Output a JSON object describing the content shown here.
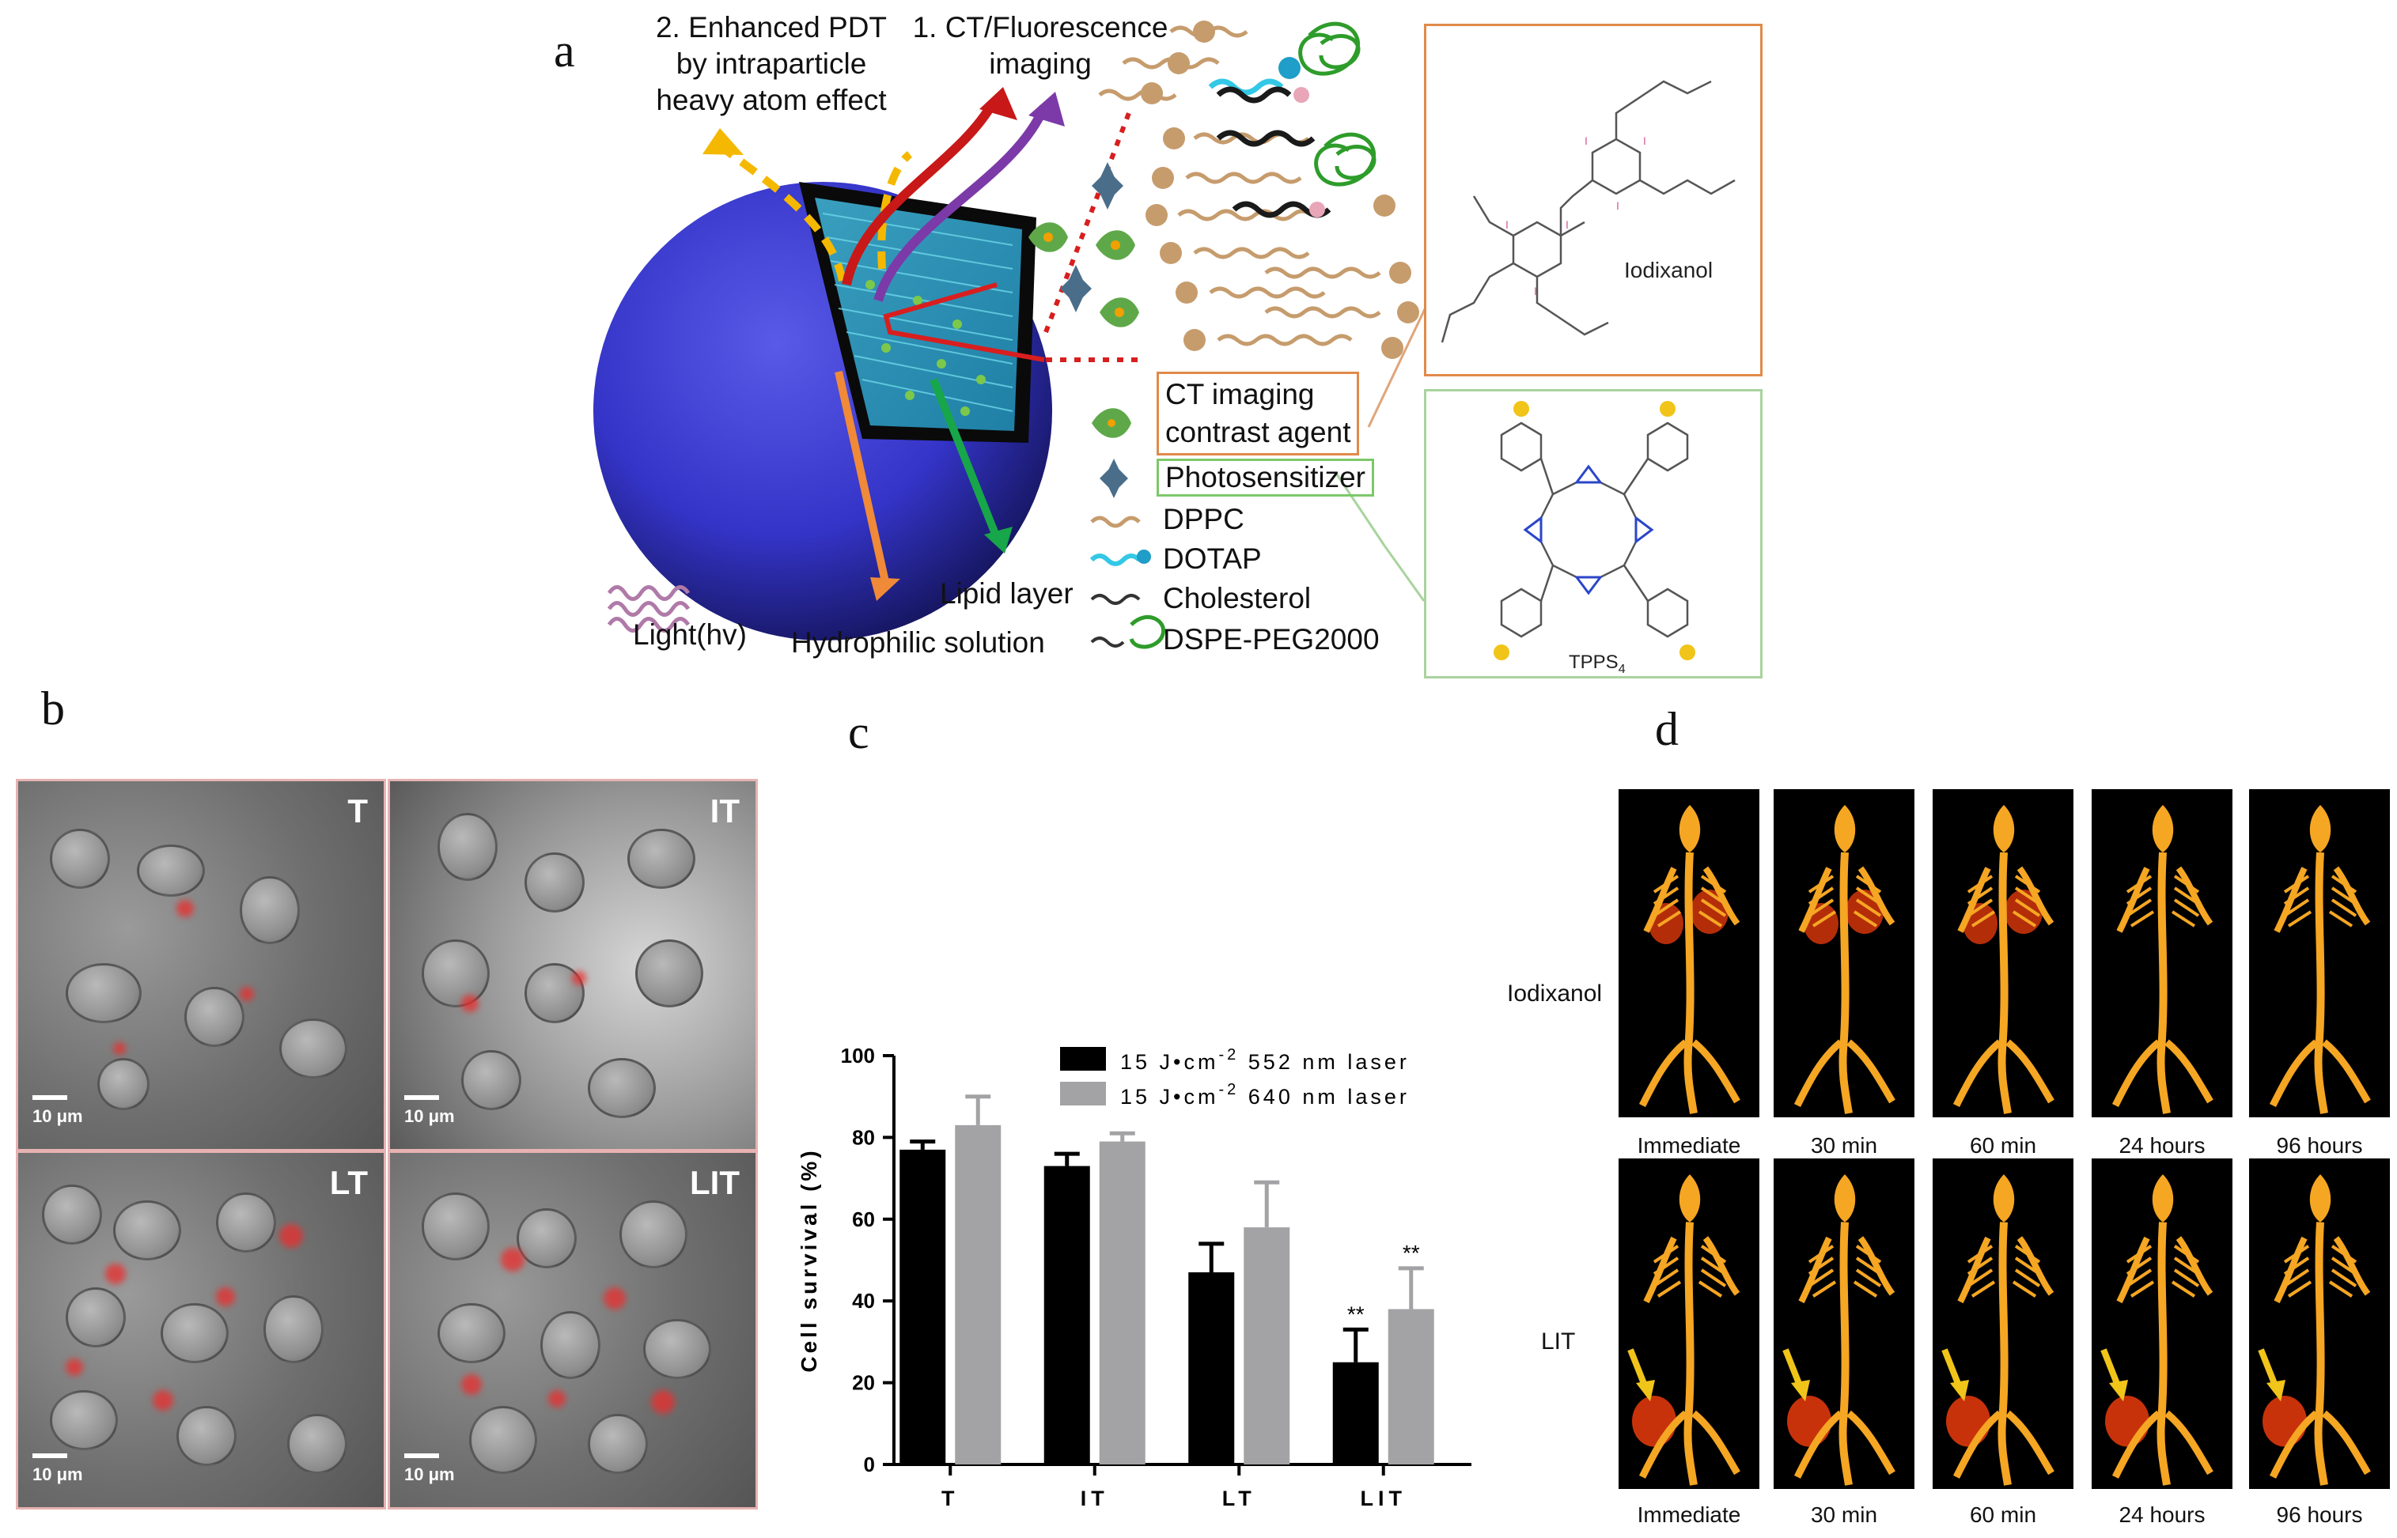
{
  "panels": {
    "a": "a",
    "b": "b",
    "c": "c",
    "d": "d"
  },
  "schematic": {
    "pdt_label": [
      "2. Enhanced PDT",
      "by intraparticle",
      "heavy atom effect"
    ],
    "imaging_label": [
      "1. CT/Fluorescence",
      "imaging"
    ],
    "light": "Light(hv)",
    "lipid_layer": "Lipid layer",
    "hydrophilic": "Hydrophilic solution",
    "legend": {
      "ct_agent": [
        "CT imaging",
        "contrast agent"
      ],
      "photosensitizer": "Photosensitizer",
      "dppc": "DPPC",
      "dotap": "DOTAP",
      "cholesterol": "Cholesterol",
      "dspe": "DSPE-PEG2000"
    },
    "iodixanol": "Iodixanol",
    "tpps": "TPPS",
    "tpps_sub": "4"
  },
  "micrographs": [
    {
      "label": "T",
      "scale": "10 μm"
    },
    {
      "label": "IT",
      "scale": "10 μm"
    },
    {
      "label": "LT",
      "scale": "10 μm"
    },
    {
      "label": "LIT",
      "scale": "10 μm"
    }
  ],
  "chart_data": {
    "type": "bar",
    "categories": [
      "T",
      "IT",
      "LT",
      "LIT"
    ],
    "series": [
      {
        "name": "15 J•cm-2 552 nm laser",
        "values": [
          77,
          73,
          47,
          25
        ],
        "errors": [
          2,
          3,
          7,
          8
        ],
        "color": "#000000"
      },
      {
        "name": "15 J•cm-2 640 nm laser",
        "values": [
          83,
          79,
          58,
          38
        ],
        "errors": [
          7,
          2,
          11,
          10
        ],
        "color": "#a3a3a6"
      }
    ],
    "significance": [
      {
        "category": "LIT",
        "series": 0,
        "text": "**"
      },
      {
        "category": "LIT",
        "series": 1,
        "text": "**"
      }
    ],
    "ylabel": "Cell survival (%)",
    "ylim": [
      0,
      100
    ],
    "yticks": [
      0,
      20,
      40,
      60,
      80,
      100
    ],
    "legend": [
      {
        "prefix": "15 J•cm",
        "sup": "-2",
        "suffix": " 552 nm laser"
      },
      {
        "prefix": "15 J•cm",
        "sup": "-2",
        "suffix": " 640 nm laser"
      }
    ]
  },
  "ct_panel": {
    "rows": [
      "Iodixanol",
      "LIT"
    ],
    "times": [
      "Immediate",
      "30 min",
      "60 min",
      "24 hours",
      "96 hours"
    ],
    "colors": {
      "bone": "#f5a623",
      "organ": "#c8320a",
      "arrow": "#f0c419"
    }
  }
}
